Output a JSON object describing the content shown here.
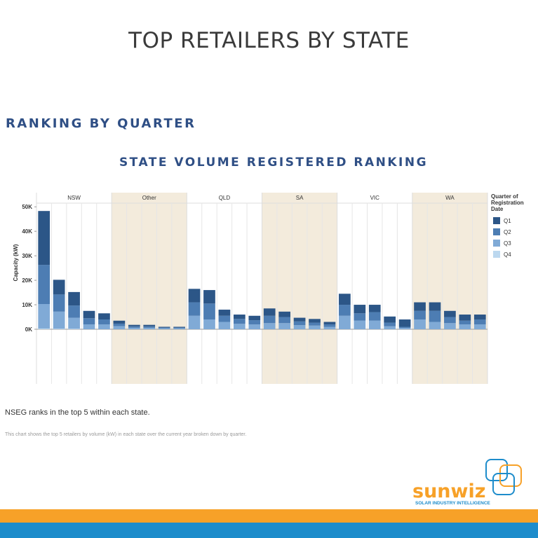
{
  "heading": "TOP RETAILERS BY STATE",
  "section": "RANKING BY QUARTER",
  "note": "NSEG ranks in the top 5 within each state.",
  "caption": "This chart shows the top 5 retailers by volume (kW) in each state over the current year broken down by quarter.",
  "logo": {
    "name": "sunwiz",
    "tagline": "SOLAR INDUSTRY INTELLIGENCE"
  },
  "chart_data": {
    "type": "stacked-bar",
    "title": "STATE VOLUME REGISTERED RANKING",
    "y_label": "Capacity (kW)",
    "legend_title": "Quarter of Registration Date",
    "groups": [
      "NSW",
      "Other",
      "QLD",
      "SA",
      "VIC",
      "WA"
    ],
    "group_shading": [
      "#ffffff",
      "#f3ebdc",
      "#ffffff",
      "#f3ebdc",
      "#ffffff",
      "#f3ebdc"
    ],
    "categories": [
      null,
      null,
      null,
      null,
      null,
      null,
      null,
      null,
      null,
      null,
      null,
      null,
      null,
      null,
      null,
      null,
      null,
      null,
      null,
      null,
      null,
      null,
      null,
      null,
      null,
      null,
      null,
      null,
      null,
      null
    ],
    "series": [
      {
        "name": "Q1",
        "color": "#2c5687",
        "values": [
          22000,
          6000,
          5500,
          3000,
          2500,
          1200,
          600,
          600,
          300,
          300,
          5500,
          5500,
          2500,
          1800,
          1800,
          3000,
          2200,
          1500,
          1500,
          1000,
          4500,
          3500,
          3000,
          2500,
          3000,
          3500,
          3500,
          2500,
          2500,
          2000
        ]
      },
      {
        "name": "Q2",
        "color": "#4d7db3",
        "values": [
          16000,
          7000,
          5000,
          2500,
          2000,
          1000,
          600,
          600,
          300,
          300,
          5500,
          6500,
          2500,
          2000,
          1700,
          3000,
          2500,
          1500,
          1200,
          1000,
          4500,
          3000,
          3500,
          1500,
          500,
          3500,
          4500,
          2500,
          1500,
          2000
        ]
      },
      {
        "name": "Q3",
        "color": "#80aad6",
        "values": [
          10000,
          7000,
          4500,
          2000,
          2000,
          1300,
          600,
          600,
          400,
          400,
          5500,
          4000,
          3000,
          2200,
          2000,
          2500,
          2500,
          1700,
          1500,
          1000,
          5500,
          3500,
          3500,
          1200,
          500,
          4000,
          3000,
          2500,
          2000,
          2000
        ]
      },
      {
        "name": "Q4",
        "color": "#bcd8ef",
        "values": [
          300,
          200,
          200,
          0,
          0,
          0,
          0,
          0,
          0,
          0,
          0,
          0,
          0,
          0,
          0,
          0,
          0,
          0,
          0,
          0,
          0,
          0,
          0,
          0,
          0,
          0,
          0,
          0,
          0,
          0
        ]
      }
    ],
    "ylim": [
      0,
      51500
    ],
    "yticks": [
      {
        "value": 0,
        "label": "0K"
      },
      {
        "value": 10000,
        "label": "10K"
      },
      {
        "value": 20000,
        "label": "20K"
      },
      {
        "value": 30000,
        "label": "30K"
      },
      {
        "value": 40000,
        "label": "40K"
      },
      {
        "value": 50000,
        "label": "50K"
      }
    ]
  }
}
